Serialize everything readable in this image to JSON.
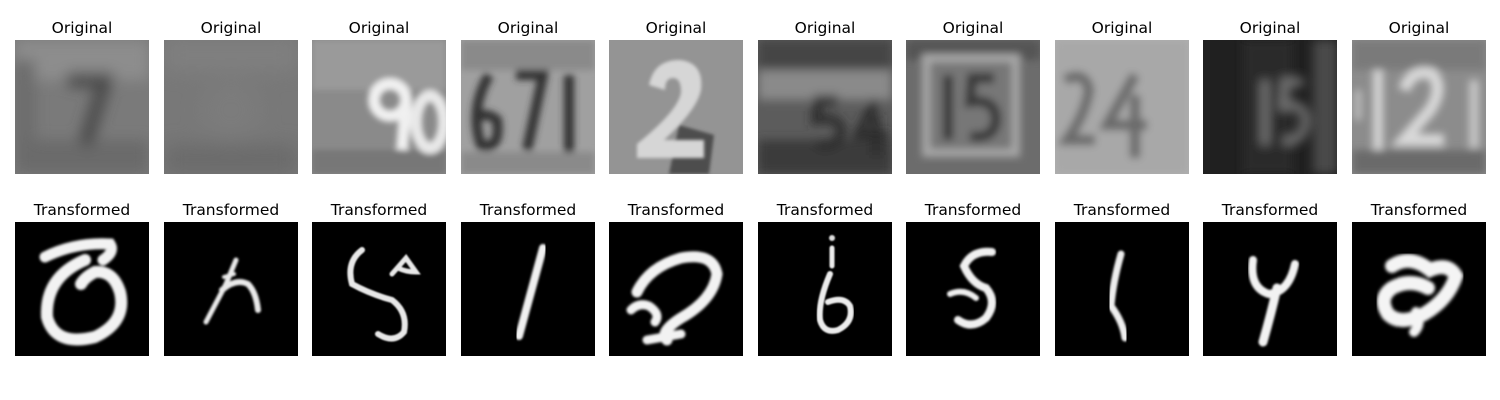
{
  "rows": [
    {
      "name": "original-row",
      "label": "Original",
      "count": 10
    },
    {
      "name": "transformed-row",
      "label": "Transformed",
      "count": 10
    }
  ],
  "original_panels": [
    {
      "title": "Original",
      "picture": "blurry grayscale house number, digit 7"
    },
    {
      "title": "Original",
      "picture": "very blurry grayscale patch, no clear digit"
    },
    {
      "title": "Original",
      "picture": "bright white digits 90 on gray wall"
    },
    {
      "title": "Original",
      "picture": "dark digits 671 on light background"
    },
    {
      "title": "Original",
      "picture": "large light-gray digit 2 on textured background"
    },
    {
      "title": "Original",
      "picture": "blurry dark digits 54"
    },
    {
      "title": "Original",
      "picture": "blurry digits 15 with frame"
    },
    {
      "title": "Original",
      "picture": "light gray digits 24"
    },
    {
      "title": "Original",
      "picture": "dark background with digits 15"
    },
    {
      "title": "Original",
      "picture": "faint light digits 12"
    }
  ],
  "transformed_panels": [
    {
      "title": "Transformed",
      "picture": "white handwritten glyph resembling 0 on black"
    },
    {
      "title": "Transformed",
      "picture": "thin white handwritten stroke resembling h"
    },
    {
      "title": "Transformed",
      "picture": "white handwritten glyph resembling 5 with loop"
    },
    {
      "title": "Transformed",
      "picture": "white handwritten digit 1"
    },
    {
      "title": "Transformed",
      "picture": "white handwritten glyph resembling 2"
    },
    {
      "title": "Transformed",
      "picture": "white handwritten digit 6"
    },
    {
      "title": "Transformed",
      "picture": "white handwritten digit 5"
    },
    {
      "title": "Transformed",
      "picture": "white handwritten stroke resembling 1"
    },
    {
      "title": "Transformed",
      "picture": "white handwritten digit 4"
    },
    {
      "title": "Transformed",
      "picture": "thick white handwritten glyph resembling 8"
    }
  ],
  "colors": {
    "background": "#ffffff",
    "transformed_bg": "#000000",
    "stroke": "#f2f2f2"
  }
}
